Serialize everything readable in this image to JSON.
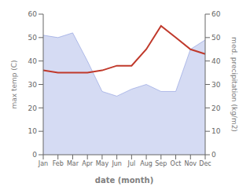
{
  "chart_data": {
    "type": "line",
    "categories": [
      "Jan",
      "Feb",
      "Mar",
      "Apr",
      "May",
      "Jun",
      "Jul",
      "Aug",
      "Sep",
      "Oct",
      "Nov",
      "Dec"
    ],
    "series": [
      {
        "type": "area",
        "axis": "y2",
        "color": "#8899dd",
        "values": [
          51,
          50,
          52,
          40,
          27,
          25,
          28,
          30,
          27,
          27,
          45,
          49
        ]
      },
      {
        "type": "line",
        "axis": "y",
        "color": "#c0392b",
        "values": [
          36,
          35,
          35,
          35,
          36,
          38,
          38,
          45,
          55,
          50,
          45,
          43
        ]
      }
    ],
    "xlabel": "date (month)",
    "ylabel": "max temp (C)",
    "y2label": "med. precipitation (kg/m2)",
    "ylim": [
      0,
      60
    ],
    "yticks": [
      0,
      10,
      20,
      30,
      40,
      50,
      60
    ],
    "y2lim": [
      0,
      60
    ],
    "y2ticks": [
      0,
      10,
      20,
      30,
      40,
      50,
      60
    ],
    "grid": false
  }
}
